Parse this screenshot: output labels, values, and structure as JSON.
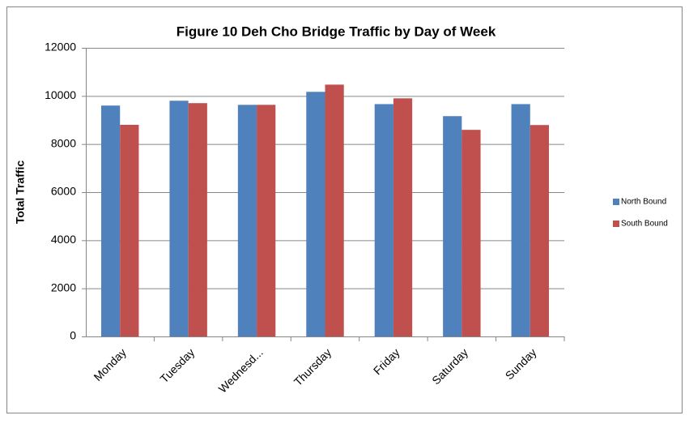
{
  "chart_data": {
    "type": "bar",
    "title": "Figure 10 Deh Cho Bridge Traffic by Day of Week",
    "y_label": "Total Traffic",
    "categories": [
      "Monday",
      "Tuesday",
      "Wednesd...",
      "Thursday",
      "Friday",
      "Saturday",
      "Sunday"
    ],
    "series": [
      {
        "name": "North Bound",
        "color": "#4f81bd",
        "values": [
          9600,
          9800,
          9630,
          10170,
          9660,
          9160,
          9660
        ]
      },
      {
        "name": "South Bound",
        "color": "#c0504d",
        "values": [
          8800,
          9700,
          9630,
          10470,
          9900,
          8590,
          8790
        ]
      }
    ],
    "ylim": [
      0,
      12000
    ],
    "yticks": [
      0,
      2000,
      4000,
      6000,
      8000,
      10000,
      12000
    ],
    "grid": true,
    "legend": "right"
  }
}
